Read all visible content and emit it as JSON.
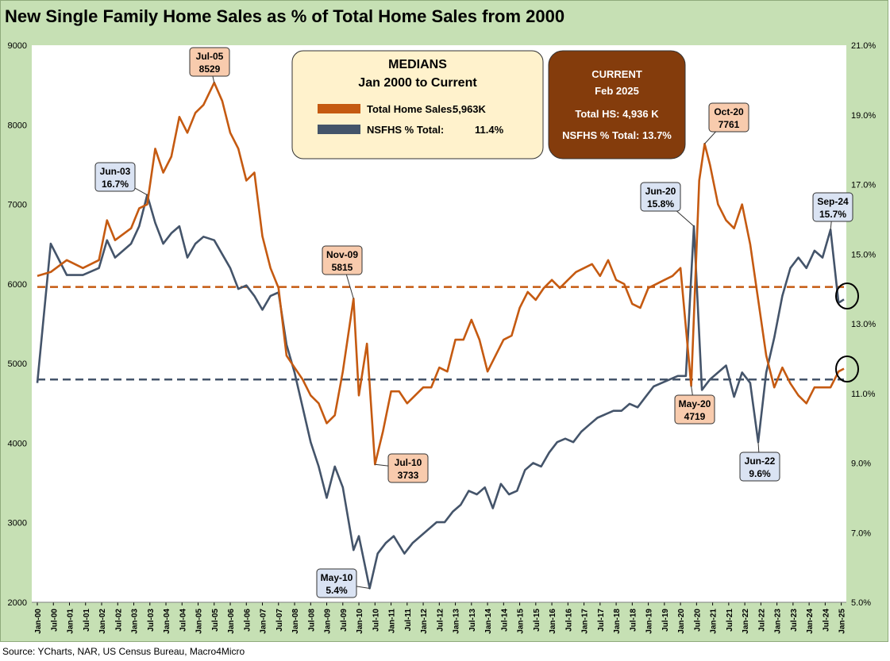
{
  "title": "New Single Family Home Sales as % of Total Home Sales from 2000",
  "source": "Source: YCharts, NAR, US Census Bureau, Macro4Micro",
  "colors": {
    "total_sales": "#c55a11",
    "nsfhs_pct": "#44546a",
    "current_box": "#843c0c",
    "medians_box": "#fff2cc"
  },
  "medians_box": {
    "title1": "MEDIANS",
    "title2": "Jan 2000 to Current",
    "row1_label": "Total Home Sales:",
    "row1_value": "5,963K",
    "row2_label": "NSFHS % Total:",
    "row2_value": "11.4%"
  },
  "current_box": {
    "title1": "CURRENT",
    "title2": "Feb 2025",
    "line1": "Total HS:  4,936 K",
    "line2": "NSFHS % Total:  13.7%"
  },
  "chart_data": {
    "type": "line",
    "title": "New Single Family Home Sales as % of Total Home Sales from 2000",
    "x_start": "2000-01",
    "x_end": "2025-02",
    "x_ticks": [
      "Jan-00",
      "Jul-00",
      "Jan-01",
      "Jul-01",
      "Jan-02",
      "Jul-02",
      "Jan-03",
      "Jul-03",
      "Jan-04",
      "Jul-04",
      "Jan-05",
      "Jul-05",
      "Jan-06",
      "Jul-06",
      "Jan-07",
      "Jul-07",
      "Jan-08",
      "Jul-08",
      "Jan-09",
      "Jul-09",
      "Jan-10",
      "Jul-10",
      "Jan-11",
      "Jul-11",
      "Jan-12",
      "Jul-12",
      "Jan-13",
      "Jul-13",
      "Jan-14",
      "Jul-14",
      "Jan-15",
      "Jul-15",
      "Jan-16",
      "Jul-16",
      "Jan-17",
      "Jul-17",
      "Jan-18",
      "Jul-18",
      "Jan-19",
      "Jul-19",
      "Jan-20",
      "Jul-20",
      "Jan-21",
      "Jul-21",
      "Jan-22",
      "Jul-22",
      "Jan-23",
      "Jul-23",
      "Jan-24",
      "Jul-24",
      "Jan-25"
    ],
    "y_left": {
      "min": 2000,
      "max": 9000,
      "ticks": [
        "2000",
        "3000",
        "4000",
        "5000",
        "6000",
        "7000",
        "8000",
        "9000"
      ]
    },
    "y_right": {
      "min": 5.0,
      "max": 21.0,
      "ticks": [
        "5.0%",
        "7.0%",
        "9.0%",
        "11.0%",
        "13.0%",
        "15.0%",
        "17.0%",
        "19.0%",
        "21.0%"
      ]
    },
    "grid": false,
    "series": [
      {
        "name": "Total Home Sales",
        "axis": "left",
        "median": 5963,
        "points": [
          [
            "2000-01",
            6100
          ],
          [
            "2000-06",
            6150
          ],
          [
            "2000-12",
            6300
          ],
          [
            "2001-06",
            6200
          ],
          [
            "2001-12",
            6300
          ],
          [
            "2002-03",
            6800
          ],
          [
            "2002-06",
            6550
          ],
          [
            "2002-12",
            6700
          ],
          [
            "2003-03",
            6950
          ],
          [
            "2003-06",
            7000
          ],
          [
            "2003-09",
            7700
          ],
          [
            "2003-12",
            7400
          ],
          [
            "2004-03",
            7600
          ],
          [
            "2004-06",
            8100
          ],
          [
            "2004-09",
            7900
          ],
          [
            "2004-12",
            8150
          ],
          [
            "2005-03",
            8250
          ],
          [
            "2005-07",
            8529
          ],
          [
            "2005-10",
            8300
          ],
          [
            "2006-01",
            7900
          ],
          [
            "2006-04",
            7700
          ],
          [
            "2006-07",
            7300
          ],
          [
            "2006-10",
            7400
          ],
          [
            "2007-01",
            6600
          ],
          [
            "2007-04",
            6200
          ],
          [
            "2007-07",
            5950
          ],
          [
            "2007-10",
            5100
          ],
          [
            "2008-01",
            4950
          ],
          [
            "2008-04",
            4800
          ],
          [
            "2008-07",
            4600
          ],
          [
            "2008-10",
            4500
          ],
          [
            "2009-01",
            4250
          ],
          [
            "2009-04",
            4350
          ],
          [
            "2009-07",
            4900
          ],
          [
            "2009-11",
            5815
          ],
          [
            "2010-01",
            4600
          ],
          [
            "2010-04",
            5250
          ],
          [
            "2010-07",
            3733
          ],
          [
            "2010-10",
            4150
          ],
          [
            "2011-01",
            4650
          ],
          [
            "2011-04",
            4650
          ],
          [
            "2011-07",
            4500
          ],
          [
            "2011-10",
            4600
          ],
          [
            "2012-01",
            4700
          ],
          [
            "2012-04",
            4700
          ],
          [
            "2012-07",
            4950
          ],
          [
            "2012-10",
            4900
          ],
          [
            "2013-01",
            5300
          ],
          [
            "2013-04",
            5300
          ],
          [
            "2013-07",
            5550
          ],
          [
            "2013-10",
            5300
          ],
          [
            "2014-01",
            4900
          ],
          [
            "2014-04",
            5100
          ],
          [
            "2014-07",
            5300
          ],
          [
            "2014-10",
            5350
          ],
          [
            "2015-01",
            5700
          ],
          [
            "2015-04",
            5900
          ],
          [
            "2015-07",
            5800
          ],
          [
            "2015-10",
            5950
          ],
          [
            "2016-01",
            6050
          ],
          [
            "2016-04",
            5950
          ],
          [
            "2016-07",
            6050
          ],
          [
            "2016-10",
            6150
          ],
          [
            "2017-01",
            6200
          ],
          [
            "2017-04",
            6250
          ],
          [
            "2017-07",
            6100
          ],
          [
            "2017-10",
            6300
          ],
          [
            "2018-01",
            6050
          ],
          [
            "2018-04",
            6000
          ],
          [
            "2018-07",
            5750
          ],
          [
            "2018-10",
            5700
          ],
          [
            "2019-01",
            5950
          ],
          [
            "2019-04",
            6000
          ],
          [
            "2019-07",
            6050
          ],
          [
            "2019-10",
            6100
          ],
          [
            "2020-01",
            6200
          ],
          [
            "2020-05",
            4719
          ],
          [
            "2020-08",
            7300
          ],
          [
            "2020-10",
            7761
          ],
          [
            "2020-12",
            7500
          ],
          [
            "2021-03",
            7000
          ],
          [
            "2021-06",
            6800
          ],
          [
            "2021-09",
            6700
          ],
          [
            "2021-12",
            7000
          ],
          [
            "2022-03",
            6500
          ],
          [
            "2022-06",
            5800
          ],
          [
            "2022-09",
            5100
          ],
          [
            "2022-12",
            4700
          ],
          [
            "2023-03",
            4950
          ],
          [
            "2023-06",
            4750
          ],
          [
            "2023-09",
            4600
          ],
          [
            "2023-12",
            4500
          ],
          [
            "2024-03",
            4700
          ],
          [
            "2024-06",
            4700
          ],
          [
            "2024-09",
            4700
          ],
          [
            "2024-12",
            4900
          ],
          [
            "2025-02",
            4936
          ]
        ]
      },
      {
        "name": "NSFHS % Total",
        "axis": "right",
        "median": 11.4,
        "points": [
          [
            "2000-01",
            11.3
          ],
          [
            "2000-06",
            15.3
          ],
          [
            "2000-12",
            14.4
          ],
          [
            "2001-06",
            14.4
          ],
          [
            "2001-12",
            14.6
          ],
          [
            "2002-03",
            15.4
          ],
          [
            "2002-06",
            14.9
          ],
          [
            "2002-12",
            15.3
          ],
          [
            "2003-03",
            15.8
          ],
          [
            "2003-06",
            16.7
          ],
          [
            "2003-09",
            15.9
          ],
          [
            "2003-12",
            15.3
          ],
          [
            "2004-03",
            15.6
          ],
          [
            "2004-06",
            15.8
          ],
          [
            "2004-09",
            14.9
          ],
          [
            "2004-12",
            15.3
          ],
          [
            "2005-03",
            15.5
          ],
          [
            "2005-07",
            15.4
          ],
          [
            "2005-10",
            15.0
          ],
          [
            "2006-01",
            14.6
          ],
          [
            "2006-04",
            14.0
          ],
          [
            "2006-07",
            14.1
          ],
          [
            "2006-10",
            13.8
          ],
          [
            "2007-01",
            13.4
          ],
          [
            "2007-04",
            13.8
          ],
          [
            "2007-07",
            13.9
          ],
          [
            "2007-10",
            12.4
          ],
          [
            "2008-01",
            11.6
          ],
          [
            "2008-04",
            10.6
          ],
          [
            "2008-07",
            9.6
          ],
          [
            "2008-10",
            8.9
          ],
          [
            "2009-01",
            8.0
          ],
          [
            "2009-04",
            8.9
          ],
          [
            "2009-07",
            8.3
          ],
          [
            "2009-11",
            6.5
          ],
          [
            "2010-01",
            6.9
          ],
          [
            "2010-05",
            5.4
          ],
          [
            "2010-08",
            6.4
          ],
          [
            "2010-11",
            6.7
          ],
          [
            "2011-02",
            6.9
          ],
          [
            "2011-06",
            6.4
          ],
          [
            "2011-09",
            6.7
          ],
          [
            "2011-12",
            6.9
          ],
          [
            "2012-03",
            7.1
          ],
          [
            "2012-06",
            7.3
          ],
          [
            "2012-09",
            7.3
          ],
          [
            "2012-12",
            7.6
          ],
          [
            "2013-03",
            7.8
          ],
          [
            "2013-06",
            8.2
          ],
          [
            "2013-09",
            8.1
          ],
          [
            "2013-12",
            8.3
          ],
          [
            "2014-03",
            7.7
          ],
          [
            "2014-06",
            8.4
          ],
          [
            "2014-09",
            8.1
          ],
          [
            "2014-12",
            8.2
          ],
          [
            "2015-03",
            8.8
          ],
          [
            "2015-06",
            9.0
          ],
          [
            "2015-09",
            8.9
          ],
          [
            "2015-12",
            9.3
          ],
          [
            "2016-03",
            9.6
          ],
          [
            "2016-06",
            9.7
          ],
          [
            "2016-09",
            9.6
          ],
          [
            "2016-12",
            9.9
          ],
          [
            "2017-03",
            10.1
          ],
          [
            "2017-06",
            10.3
          ],
          [
            "2017-09",
            10.4
          ],
          [
            "2017-12",
            10.5
          ],
          [
            "2018-03",
            10.5
          ],
          [
            "2018-06",
            10.7
          ],
          [
            "2018-09",
            10.6
          ],
          [
            "2018-12",
            10.9
          ],
          [
            "2019-03",
            11.2
          ],
          [
            "2019-06",
            11.3
          ],
          [
            "2019-09",
            11.4
          ],
          [
            "2019-12",
            11.5
          ],
          [
            "2020-03",
            11.5
          ],
          [
            "2020-06",
            15.8
          ],
          [
            "2020-09",
            11.1
          ],
          [
            "2020-12",
            11.4
          ],
          [
            "2021-03",
            11.6
          ],
          [
            "2021-06",
            11.8
          ],
          [
            "2021-09",
            10.9
          ],
          [
            "2021-12",
            11.6
          ],
          [
            "2022-03",
            11.3
          ],
          [
            "2022-06",
            9.6
          ],
          [
            "2022-09",
            11.6
          ],
          [
            "2022-12",
            12.6
          ],
          [
            "2023-03",
            13.8
          ],
          [
            "2023-06",
            14.6
          ],
          [
            "2023-09",
            14.9
          ],
          [
            "2023-12",
            14.6
          ],
          [
            "2024-03",
            15.1
          ],
          [
            "2024-06",
            14.9
          ],
          [
            "2024-09",
            15.7
          ],
          [
            "2024-12",
            13.6
          ],
          [
            "2025-02",
            13.7
          ]
        ]
      }
    ],
    "callouts": [
      {
        "label": "Jul-05",
        "value": "8529",
        "series": 0,
        "date": "2005-07"
      },
      {
        "label": "Nov-09",
        "value": "5815",
        "series": 0,
        "date": "2009-11"
      },
      {
        "label": "Jul-10",
        "value": "3733",
        "series": 0,
        "date": "2010-07"
      },
      {
        "label": "Oct-20",
        "value": "7761",
        "series": 0,
        "date": "2020-10"
      },
      {
        "label": "May-20",
        "value": "4719",
        "series": 0,
        "date": "2020-05"
      },
      {
        "label": "Jun-03",
        "value": "16.7%",
        "series": 1,
        "date": "2003-06"
      },
      {
        "label": "May-10",
        "value": "5.4%",
        "series": 1,
        "date": "2010-05"
      },
      {
        "label": "Jun-20",
        "value": "15.8%",
        "series": 1,
        "date": "2020-06"
      },
      {
        "label": "Jun-22",
        "value": "9.6%",
        "series": 1,
        "date": "2022-06"
      },
      {
        "label": "Sep-24",
        "value": "15.7%",
        "series": 1,
        "date": "2024-09"
      }
    ]
  }
}
